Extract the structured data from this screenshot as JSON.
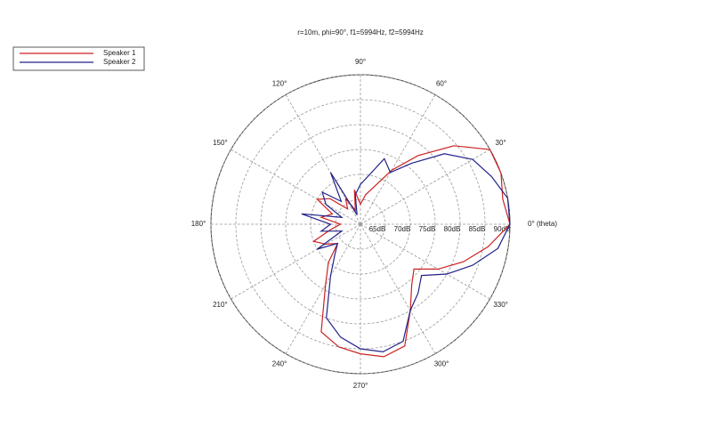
{
  "chart_data": {
    "type": "polar",
    "title": "r=10m, phi=90°, f1=5994Hz, f2=5994Hz",
    "theta": [
      0,
      10,
      20,
      30,
      40,
      50,
      60,
      70,
      80,
      90,
      100,
      110,
      120,
      130,
      140,
      150,
      160,
      170,
      180,
      190,
      200,
      210,
      220,
      230,
      240,
      250,
      260,
      270,
      280,
      290,
      300,
      310,
      320,
      330,
      340,
      350
    ],
    "series": [
      {
        "name": "Speaker 1",
        "color": "#cc2222",
        "values": [
          90,
          89,
          90,
          90,
          84.5,
          78,
          72.5,
          68,
          66,
          64,
          67,
          63,
          66,
          64,
          68,
          70,
          66,
          68,
          64,
          66,
          70,
          68,
          66,
          70,
          74,
          83,
          85,
          86,
          87,
          86,
          80,
          76,
          74,
          78,
          82,
          86
        ]
      },
      {
        "name": "Speaker 2",
        "color": "#22228a",
        "values": [
          90,
          90,
          88,
          86,
          82,
          76,
          72,
          74,
          70,
          68,
          66,
          62,
          72,
          66,
          70,
          68,
          64,
          72,
          66,
          68,
          64,
          70,
          66,
          68,
          72,
          80,
          83,
          85,
          86,
          85,
          80,
          78,
          76,
          80,
          84,
          88
        ]
      }
    ],
    "rlim": [
      60,
      90
    ],
    "rticks": [
      {
        "value": 65,
        "label": "65dB"
      },
      {
        "value": 70,
        "label": "70dB"
      },
      {
        "value": 75,
        "label": "75dB"
      },
      {
        "value": 80,
        "label": "80dB"
      },
      {
        "value": 85,
        "label": "85dB"
      },
      {
        "value": 90,
        "label": "90dB"
      }
    ],
    "thetaticks": [
      {
        "value": 0,
        "label": "0° (theta)"
      },
      {
        "value": 30,
        "label": "30°"
      },
      {
        "value": 60,
        "label": "60°"
      },
      {
        "value": 90,
        "label": "90°"
      },
      {
        "value": 120,
        "label": "120°"
      },
      {
        "value": 150,
        "label": "150°"
      },
      {
        "value": 180,
        "label": "180°"
      },
      {
        "value": 210,
        "label": "210°"
      },
      {
        "value": 240,
        "label": "240°"
      },
      {
        "value": 270,
        "label": "270°"
      },
      {
        "value": 300,
        "label": "300°"
      },
      {
        "value": 330,
        "label": "330°"
      }
    ],
    "grid": true,
    "legend": "upper left"
  }
}
